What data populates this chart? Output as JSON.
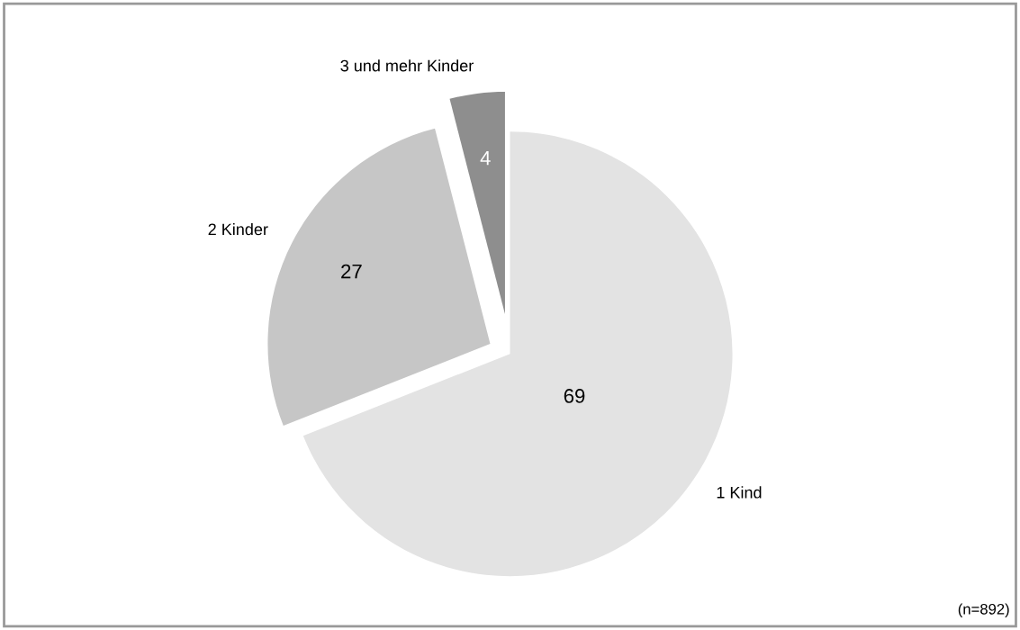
{
  "chart_data": {
    "type": "pie",
    "categories": [
      "1 Kind",
      "2 Kinder",
      "3 und mehr Kinder"
    ],
    "values": [
      69,
      27,
      4
    ],
    "colors": [
      "#e3e3e3",
      "#c6c6c6",
      "#8e8e8e"
    ],
    "data_labels": true,
    "legend": false,
    "annotations": [
      "(n=892)"
    ]
  }
}
